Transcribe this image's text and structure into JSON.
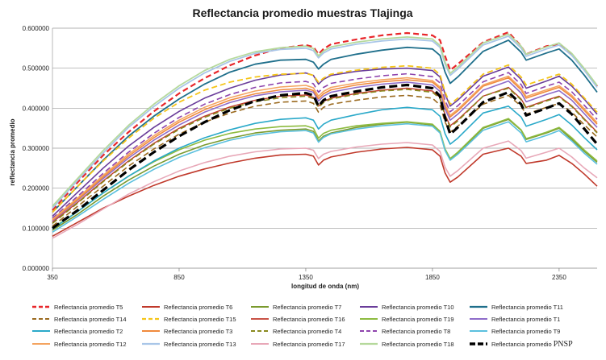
{
  "chart_data": {
    "type": "line",
    "title": "Reflectancia promedio muestras Tlajinga",
    "xlabel": "longitud de onda (nm)",
    "ylabel": "reflectancia promedio",
    "xlim": [
      350,
      2500
    ],
    "ylim": [
      0,
      0.6
    ],
    "x_ticks": [
      350,
      850,
      1350,
      1850,
      2350
    ],
    "y_ticks": [
      "0.000000",
      "0.100000",
      "0.200000",
      "0.300000",
      "0.400000",
      "0.500000",
      "0.600000"
    ],
    "grid": "horizontal",
    "legend_position": "bottom",
    "x": [
      350,
      450,
      550,
      650,
      750,
      850,
      950,
      1050,
      1150,
      1250,
      1350,
      1380,
      1400,
      1420,
      1450,
      1550,
      1650,
      1750,
      1850,
      1880,
      1900,
      1920,
      1950,
      2050,
      2150,
      2200,
      2220,
      2300,
      2350,
      2400,
      2450,
      2500
    ],
    "series": [
      {
        "name": "Reflectancia promedio T5",
        "color": "#e8262a",
        "dash": "dash",
        "width": 2.2,
        "values": [
          0.145,
          0.215,
          0.282,
          0.34,
          0.392,
          0.437,
          0.475,
          0.507,
          0.532,
          0.55,
          0.558,
          0.553,
          0.535,
          0.548,
          0.56,
          0.572,
          0.582,
          0.588,
          0.582,
          0.57,
          0.53,
          0.495,
          0.51,
          0.565,
          0.59,
          0.555,
          0.535,
          0.555,
          0.56,
          0.535,
          0.495,
          0.455
        ]
      },
      {
        "name": "Reflectancia promedio T6",
        "color": "#c0392b",
        "dash": "solid",
        "width": 1.6,
        "values": [
          0.08,
          0.115,
          0.15,
          0.18,
          0.207,
          0.23,
          0.248,
          0.263,
          0.275,
          0.283,
          0.285,
          0.28,
          0.258,
          0.27,
          0.278,
          0.29,
          0.298,
          0.302,
          0.296,
          0.28,
          0.238,
          0.215,
          0.228,
          0.285,
          0.3,
          0.28,
          0.262,
          0.27,
          0.282,
          0.262,
          0.235,
          0.205
        ]
      },
      {
        "name": "Reflectancia promedio T7",
        "color": "#7a9a2e",
        "dash": "solid",
        "width": 1.6,
        "values": [
          0.095,
          0.135,
          0.18,
          0.22,
          0.255,
          0.285,
          0.308,
          0.325,
          0.338,
          0.345,
          0.348,
          0.342,
          0.318,
          0.33,
          0.338,
          0.352,
          0.36,
          0.365,
          0.358,
          0.34,
          0.295,
          0.272,
          0.288,
          0.35,
          0.372,
          0.345,
          0.322,
          0.338,
          0.35,
          0.322,
          0.292,
          0.265
        ]
      },
      {
        "name": "Reflectancia promedio T10",
        "color": "#6a3d9a",
        "dash": "solid",
        "width": 1.6,
        "values": [
          0.13,
          0.19,
          0.25,
          0.305,
          0.352,
          0.392,
          0.425,
          0.45,
          0.47,
          0.483,
          0.488,
          0.482,
          0.46,
          0.472,
          0.482,
          0.492,
          0.498,
          0.5,
          0.494,
          0.478,
          0.435,
          0.405,
          0.42,
          0.48,
          0.503,
          0.472,
          0.45,
          0.468,
          0.48,
          0.455,
          0.422,
          0.385
        ]
      },
      {
        "name": "Reflectancia promedio T11",
        "color": "#1f6f8b",
        "dash": "solid",
        "width": 1.8,
        "values": [
          0.14,
          0.205,
          0.27,
          0.33,
          0.38,
          0.423,
          0.46,
          0.49,
          0.51,
          0.52,
          0.522,
          0.515,
          0.498,
          0.51,
          0.522,
          0.535,
          0.545,
          0.552,
          0.548,
          0.532,
          0.49,
          0.462,
          0.478,
          0.542,
          0.57,
          0.54,
          0.52,
          0.538,
          0.548,
          0.52,
          0.482,
          0.44
        ]
      },
      {
        "name": "Reflectancia promedio T14",
        "color": "#9b6a1f",
        "dash": "dash",
        "width": 1.6,
        "values": [
          0.105,
          0.155,
          0.205,
          0.255,
          0.298,
          0.335,
          0.365,
          0.388,
          0.405,
          0.415,
          0.418,
          0.412,
          0.39,
          0.402,
          0.41,
          0.42,
          0.428,
          0.432,
          0.425,
          0.408,
          0.365,
          0.34,
          0.355,
          0.41,
          0.432,
          0.405,
          0.385,
          0.402,
          0.412,
          0.39,
          0.358,
          0.328
        ]
      },
      {
        "name": "Reflectancia promedio T15",
        "color": "#f5c518",
        "dash": "dash",
        "width": 1.8,
        "values": [
          0.14,
          0.205,
          0.268,
          0.325,
          0.375,
          0.415,
          0.445,
          0.465,
          0.478,
          0.485,
          0.487,
          0.482,
          0.465,
          0.475,
          0.485,
          0.495,
          0.502,
          0.506,
          0.5,
          0.484,
          0.44,
          0.41,
          0.425,
          0.485,
          0.508,
          0.478,
          0.458,
          0.475,
          0.485,
          0.46,
          0.425,
          0.39
        ]
      },
      {
        "name": "Reflectancia promedio T16",
        "color": "#c0392b",
        "dash": "solid",
        "width": 1.4,
        "values": [
          0.115,
          0.165,
          0.218,
          0.268,
          0.312,
          0.35,
          0.38,
          0.403,
          0.42,
          0.43,
          0.433,
          0.427,
          0.405,
          0.417,
          0.425,
          0.437,
          0.445,
          0.45,
          0.443,
          0.427,
          0.383,
          0.356,
          0.371,
          0.43,
          0.452,
          0.423,
          0.402,
          0.42,
          0.43,
          0.406,
          0.373,
          0.34
        ]
      },
      {
        "name": "Reflectancia promedio T19",
        "color": "#8dbb3f",
        "dash": "solid",
        "width": 1.6,
        "values": [
          0.1,
          0.142,
          0.188,
          0.23,
          0.266,
          0.296,
          0.32,
          0.337,
          0.348,
          0.354,
          0.356,
          0.35,
          0.325,
          0.337,
          0.345,
          0.356,
          0.362,
          0.366,
          0.36,
          0.342,
          0.298,
          0.274,
          0.29,
          0.352,
          0.374,
          0.346,
          0.324,
          0.34,
          0.352,
          0.326,
          0.295,
          0.268
        ]
      },
      {
        "name": "Reflectancia promedio T1",
        "color": "#8e6cc9",
        "dash": "solid",
        "width": 1.6,
        "values": [
          0.118,
          0.17,
          0.224,
          0.275,
          0.32,
          0.358,
          0.39,
          0.414,
          0.431,
          0.441,
          0.445,
          0.44,
          0.418,
          0.43,
          0.44,
          0.452,
          0.46,
          0.465,
          0.458,
          0.442,
          0.398,
          0.37,
          0.385,
          0.445,
          0.468,
          0.438,
          0.416,
          0.434,
          0.444,
          0.42,
          0.386,
          0.352
        ]
      },
      {
        "name": "Reflectancia promedio T2",
        "color": "#2aa9c9",
        "dash": "solid",
        "width": 1.6,
        "values": [
          0.098,
          0.142,
          0.188,
          0.23,
          0.268,
          0.3,
          0.326,
          0.346,
          0.362,
          0.372,
          0.376,
          0.37,
          0.348,
          0.36,
          0.37,
          0.384,
          0.396,
          0.402,
          0.396,
          0.38,
          0.336,
          0.31,
          0.325,
          0.388,
          0.405,
          0.378,
          0.355,
          0.372,
          0.384,
          0.358,
          0.326,
          0.296
        ]
      },
      {
        "name": "Reflectancia promedio T3",
        "color": "#f08a3c",
        "dash": "solid",
        "width": 1.6,
        "values": [
          0.12,
          0.172,
          0.228,
          0.28,
          0.326,
          0.365,
          0.396,
          0.42,
          0.436,
          0.446,
          0.45,
          0.444,
          0.424,
          0.436,
          0.446,
          0.458,
          0.466,
          0.471,
          0.465,
          0.449,
          0.405,
          0.378,
          0.393,
          0.455,
          0.476,
          0.446,
          0.425,
          0.442,
          0.452,
          0.428,
          0.394,
          0.36
        ]
      },
      {
        "name": "Reflectancia promedio T4",
        "color": "#8a8a1f",
        "dash": "dash",
        "width": 1.6,
        "values": [
          0.112,
          0.163,
          0.216,
          0.266,
          0.31,
          0.347,
          0.377,
          0.4,
          0.416,
          0.426,
          0.43,
          0.424,
          0.402,
          0.414,
          0.423,
          0.435,
          0.443,
          0.447,
          0.44,
          0.424,
          0.38,
          0.353,
          0.368,
          0.43,
          0.45,
          0.421,
          0.4,
          0.418,
          0.428,
          0.404,
          0.371,
          0.338
        ]
      },
      {
        "name": "Reflectancia promedio T8",
        "color": "#8e44ad",
        "dash": "dash",
        "width": 1.6,
        "values": [
          0.125,
          0.18,
          0.237,
          0.29,
          0.337,
          0.377,
          0.41,
          0.434,
          0.452,
          0.463,
          0.467,
          0.461,
          0.44,
          0.452,
          0.462,
          0.473,
          0.481,
          0.486,
          0.479,
          0.463,
          0.419,
          0.391,
          0.406,
          0.466,
          0.489,
          0.459,
          0.437,
          0.455,
          0.465,
          0.441,
          0.407,
          0.372
        ]
      },
      {
        "name": "Reflectancia promedio T9",
        "color": "#5bc0de",
        "dash": "solid",
        "width": 1.6,
        "values": [
          0.09,
          0.13,
          0.172,
          0.212,
          0.247,
          0.277,
          0.301,
          0.32,
          0.333,
          0.341,
          0.344,
          0.338,
          0.315,
          0.327,
          0.336,
          0.348,
          0.356,
          0.361,
          0.355,
          0.338,
          0.294,
          0.27,
          0.285,
          0.345,
          0.366,
          0.338,
          0.316,
          0.332,
          0.344,
          0.318,
          0.287,
          0.26
        ]
      },
      {
        "name": "Reflectancia promedio T12",
        "color": "#f4a460",
        "dash": "solid",
        "width": 1.6,
        "values": [
          0.122,
          0.176,
          0.232,
          0.285,
          0.331,
          0.37,
          0.402,
          0.426,
          0.443,
          0.453,
          0.457,
          0.451,
          0.43,
          0.442,
          0.452,
          0.463,
          0.471,
          0.476,
          0.469,
          0.453,
          0.409,
          0.382,
          0.397,
          0.458,
          0.48,
          0.45,
          0.429,
          0.446,
          0.456,
          0.432,
          0.398,
          0.364
        ]
      },
      {
        "name": "Reflectancia promedio T13",
        "color": "#a9c6e8",
        "dash": "solid",
        "width": 1.8,
        "values": [
          0.15,
          0.22,
          0.288,
          0.352,
          0.404,
          0.45,
          0.488,
          0.517,
          0.537,
          0.547,
          0.55,
          0.544,
          0.526,
          0.538,
          0.548,
          0.56,
          0.568,
          0.573,
          0.568,
          0.552,
          0.51,
          0.482,
          0.498,
          0.558,
          0.58,
          0.55,
          0.53,
          0.548,
          0.558,
          0.532,
          0.494,
          0.452
        ]
      },
      {
        "name": "Reflectancia promedio T17",
        "color": "#e8a8b8",
        "dash": "solid",
        "width": 1.6,
        "values": [
          0.075,
          0.11,
          0.148,
          0.185,
          0.216,
          0.243,
          0.264,
          0.28,
          0.291,
          0.298,
          0.3,
          0.295,
          0.274,
          0.285,
          0.292,
          0.303,
          0.31,
          0.314,
          0.308,
          0.292,
          0.252,
          0.23,
          0.244,
          0.3,
          0.318,
          0.294,
          0.275,
          0.29,
          0.3,
          0.278,
          0.25,
          0.226
        ]
      },
      {
        "name": "Reflectancia promedio T18",
        "color": "#b5d99c",
        "dash": "solid",
        "width": 1.8,
        "values": [
          0.155,
          0.225,
          0.294,
          0.357,
          0.41,
          0.456,
          0.494,
          0.522,
          0.541,
          0.551,
          0.555,
          0.549,
          0.531,
          0.543,
          0.553,
          0.565,
          0.573,
          0.578,
          0.573,
          0.557,
          0.515,
          0.487,
          0.503,
          0.563,
          0.585,
          0.555,
          0.535,
          0.553,
          0.563,
          0.537,
          0.499,
          0.457
        ]
      },
      {
        "name": "Reflectancia promedio PNSP",
        "color": "#000000",
        "dash": "bigdash",
        "width": 3.2,
        "values": [
          0.1,
          0.145,
          0.195,
          0.245,
          0.29,
          0.33,
          0.365,
          0.395,
          0.418,
          0.432,
          0.438,
          0.432,
          0.405,
          0.42,
          0.43,
          0.442,
          0.452,
          0.458,
          0.45,
          0.43,
          0.375,
          0.335,
          0.352,
          0.415,
          0.44,
          0.41,
          0.382,
          0.4,
          0.412,
          0.385,
          0.348,
          0.31
        ]
      }
    ]
  }
}
